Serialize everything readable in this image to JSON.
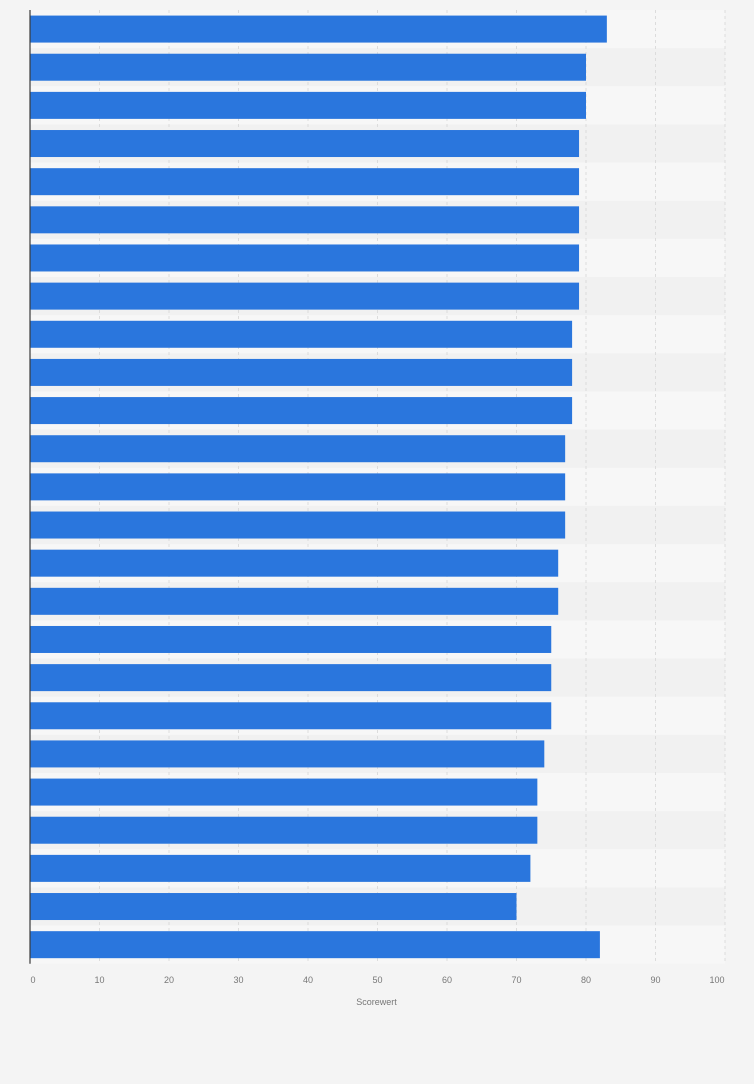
{
  "chart_data": {
    "type": "bar",
    "orientation": "horizontal",
    "values": [
      83,
      80,
      80,
      79,
      79,
      79,
      79,
      79,
      78,
      78,
      78,
      77,
      77,
      77,
      76,
      76,
      75,
      75,
      75,
      74,
      73,
      73,
      72,
      70,
      82
    ],
    "xlabel": "Scorewert",
    "xlim": [
      0,
      100
    ],
    "xticks": [
      "0",
      "10",
      "20",
      "30",
      "40",
      "50",
      "60",
      "70",
      "80",
      "90",
      "100"
    ],
    "grid": true,
    "legend": "none"
  },
  "colors": {
    "bar": "#2a76dd",
    "background": "#f4f4f4",
    "band_light": "#f7f7f7",
    "band_dark": "#f1f1f1",
    "grid": "#dcdcdc",
    "axis": "#3a3a3a",
    "tick_text": "#777777"
  }
}
